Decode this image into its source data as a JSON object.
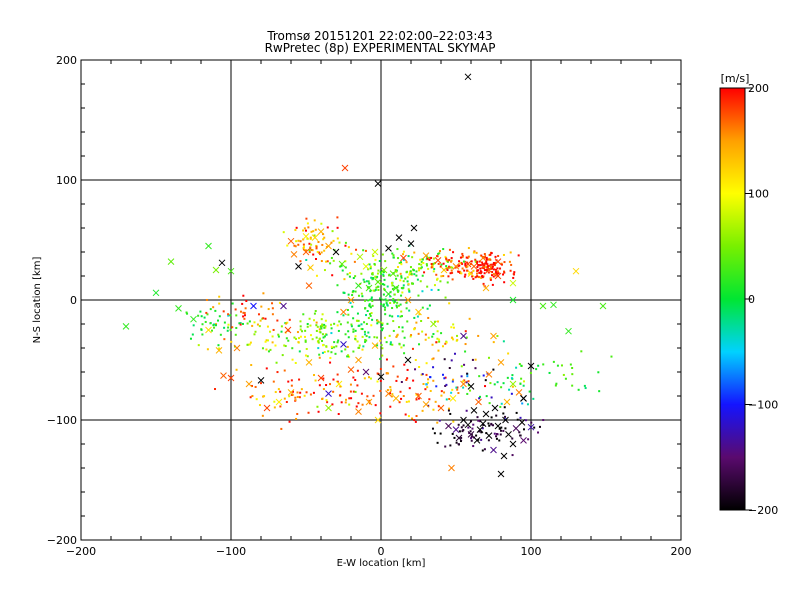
{
  "chart_data": {
    "type": "scatter",
    "title": "Tromsø 20151201 22:02:00–22:03:43",
    "subtitle": "RwPretec (8p) EXPERIMENTAL SKYMAP",
    "xlabel": "E-W location [km]",
    "ylabel": "N-S location [km]",
    "xlim": [
      -200,
      200
    ],
    "ylim": [
      -200,
      200
    ],
    "xticks": [
      -200,
      -100,
      0,
      100,
      200
    ],
    "yticks": [
      -200,
      -100,
      0,
      100,
      200
    ],
    "grid": true,
    "colorbar": {
      "label": "[m/s]",
      "min": -200,
      "max": 200,
      "ticks": [
        200,
        100,
        0,
        -100,
        -200
      ],
      "colormap": [
        "#000000",
        "#5a0a6e",
        "#1414ff",
        "#00d2ff",
        "#00e632",
        "#78f000",
        "#ffff00",
        "#ffa000",
        "#ff0000"
      ]
    },
    "series": [
      {
        "marker": "x",
        "points": [
          [
            58,
            186,
            -200
          ],
          [
            -24,
            110,
            180
          ],
          [
            -2,
            97,
            -200
          ],
          [
            -40,
            57,
            140
          ],
          [
            -44,
            52,
            120
          ],
          [
            -50,
            53,
            110
          ],
          [
            -58,
            38,
            160
          ],
          [
            -60,
            49,
            170
          ],
          [
            -35,
            45,
            150
          ],
          [
            -150,
            6,
            10
          ],
          [
            -170,
            -22,
            20
          ],
          [
            -140,
            32,
            40
          ],
          [
            -115,
            45,
            20
          ],
          [
            -106,
            31,
            -200
          ],
          [
            -110,
            25,
            50
          ],
          [
            -100,
            24,
            30
          ],
          [
            -135,
            -7,
            20
          ],
          [
            -125,
            -16,
            20
          ],
          [
            -115,
            -25,
            120
          ],
          [
            -108,
            -42,
            140
          ],
          [
            -100,
            -65,
            180
          ],
          [
            -80,
            -67,
            -200
          ],
          [
            -76,
            -90,
            180
          ],
          [
            -85,
            -5,
            -100
          ],
          [
            -65,
            -5,
            -140
          ],
          [
            -62,
            -25,
            180
          ],
          [
            -47,
            27,
            130
          ],
          [
            -48,
            12,
            170
          ],
          [
            -25,
            -37,
            -120
          ],
          [
            -20,
            -58,
            170
          ],
          [
            -15,
            -50,
            150
          ],
          [
            -10,
            -60,
            -150
          ],
          [
            -4,
            -38,
            140
          ],
          [
            0,
            -64,
            -200
          ],
          [
            -2,
            -100,
            120
          ],
          [
            -8,
            -85,
            150
          ],
          [
            -15,
            -93,
            160
          ],
          [
            -35,
            -90,
            60
          ],
          [
            -48,
            -52,
            140
          ],
          [
            -28,
            -70,
            110
          ],
          [
            -35,
            -78,
            -120
          ],
          [
            5,
            -78,
            160
          ],
          [
            10,
            -82,
            140
          ],
          [
            18,
            -50,
            -200
          ],
          [
            25,
            -80,
            170
          ],
          [
            30,
            -87,
            150
          ],
          [
            40,
            -90,
            170
          ],
          [
            48,
            -82,
            110
          ],
          [
            55,
            -70,
            160
          ],
          [
            60,
            -72,
            -200
          ],
          [
            65,
            -85,
            170
          ],
          [
            72,
            -62,
            160
          ],
          [
            80,
            -52,
            150
          ],
          [
            88,
            -70,
            60
          ],
          [
            95,
            -82,
            -200
          ],
          [
            100,
            -55,
            -200
          ],
          [
            84,
            -85,
            140
          ],
          [
            92,
            -77,
            160
          ],
          [
            83,
            -100,
            -200
          ],
          [
            76,
            -90,
            -200
          ],
          [
            70,
            -95,
            -200
          ],
          [
            62,
            -92,
            -200
          ],
          [
            55,
            -100,
            -200
          ],
          [
            50,
            -108,
            -140
          ],
          [
            45,
            -105,
            -160
          ],
          [
            58,
            -104,
            -200
          ],
          [
            66,
            -108,
            -200
          ],
          [
            72,
            -113,
            -200
          ],
          [
            78,
            -105,
            -200
          ],
          [
            85,
            -112,
            -200
          ],
          [
            90,
            -107,
            -160
          ],
          [
            95,
            -117,
            -150
          ],
          [
            100,
            -106,
            -130
          ],
          [
            88,
            -120,
            -200
          ],
          [
            75,
            -125,
            -140
          ],
          [
            82,
            -130,
            -200
          ],
          [
            64,
            -117,
            -200
          ],
          [
            68,
            -103,
            -200
          ],
          [
            60,
            -112,
            -170
          ],
          [
            52,
            -115,
            -180
          ],
          [
            94,
            -102,
            -200
          ],
          [
            80,
            -145,
            -200
          ],
          [
            47,
            -140,
            160
          ],
          [
            -14,
            36,
            70
          ],
          [
            -10,
            28,
            90
          ],
          [
            -4,
            40,
            80
          ],
          [
            5,
            43,
            -200
          ],
          [
            12,
            52,
            -200
          ],
          [
            20,
            47,
            -200
          ],
          [
            22,
            60,
            -200
          ],
          [
            15,
            35,
            180
          ],
          [
            30,
            37,
            150
          ],
          [
            38,
            33,
            180
          ],
          [
            42,
            25,
            130
          ],
          [
            50,
            28,
            160
          ],
          [
            58,
            30,
            180
          ],
          [
            62,
            28,
            170
          ],
          [
            68,
            35,
            160
          ],
          [
            72,
            25,
            170
          ],
          [
            78,
            32,
            180
          ],
          [
            78,
            20,
            180
          ],
          [
            88,
            14,
            80
          ],
          [
            88,
            0,
            10
          ],
          [
            70,
            10,
            140
          ],
          [
            60,
            22,
            120
          ],
          [
            2,
            25,
            50
          ],
          [
            8,
            22,
            40
          ],
          [
            -2,
            15,
            40
          ],
          [
            -8,
            10,
            30
          ],
          [
            -15,
            12,
            20
          ],
          [
            5,
            5,
            20
          ],
          [
            10,
            10,
            30
          ],
          [
            -20,
            0,
            150
          ],
          [
            -25,
            -10,
            160
          ],
          [
            18,
            0,
            150
          ],
          [
            25,
            -10,
            130
          ],
          [
            35,
            -20,
            60
          ],
          [
            55,
            -30,
            -140
          ],
          [
            75,
            -30,
            150
          ],
          [
            95,
            -82,
            -200
          ],
          [
            108,
            -5,
            30
          ],
          [
            115,
            -4,
            20
          ],
          [
            125,
            -26,
            20
          ],
          [
            130,
            24,
            120
          ],
          [
            148,
            -5,
            30
          ],
          [
            -40,
            -65,
            180
          ],
          [
            -60,
            -77,
            140
          ],
          [
            -68,
            -85,
            110
          ],
          [
            -88,
            -70,
            150
          ],
          [
            -96,
            -40,
            160
          ],
          [
            -105,
            -63,
            170
          ],
          [
            -30,
            40,
            -200
          ],
          [
            -26,
            30,
            40
          ],
          [
            -55,
            28,
            -200
          ],
          [
            -50,
            40,
            170
          ]
        ]
      },
      {
        "marker": "dot",
        "clusters": [
          {
            "cx": -45,
            "cy": 50,
            "sx": 10,
            "sy": 8,
            "n": 60,
            "v": 150,
            "vs": 40
          },
          {
            "cx": -30,
            "cy": 35,
            "sx": 12,
            "sy": 8,
            "n": 30,
            "v": 100,
            "vs": 60
          },
          {
            "cx": 5,
            "cy": 10,
            "sx": 14,
            "sy": 14,
            "n": 160,
            "v": 20,
            "vs": 25
          },
          {
            "cx": 25,
            "cy": 25,
            "sx": 15,
            "sy": 10,
            "n": 90,
            "v": 60,
            "vs": 40
          },
          {
            "cx": 60,
            "cy": 28,
            "sx": 14,
            "sy": 7,
            "n": 140,
            "v": 180,
            "vs": 30
          },
          {
            "cx": 70,
            "cy": 27,
            "sx": 5,
            "sy": 5,
            "n": 60,
            "v": 200,
            "vs": 10
          },
          {
            "cx": -50,
            "cy": -30,
            "sx": 28,
            "sy": 10,
            "n": 140,
            "v": 60,
            "vs": 40
          },
          {
            "cx": -110,
            "cy": -20,
            "sx": 12,
            "sy": 8,
            "n": 40,
            "v": 10,
            "vs": 20
          },
          {
            "cx": -20,
            "cy": -30,
            "sx": 15,
            "sy": 10,
            "n": 60,
            "v": 30,
            "vs": 30
          },
          {
            "cx": 30,
            "cy": -30,
            "sx": 18,
            "sy": 10,
            "n": 60,
            "v": 100,
            "vs": 50
          },
          {
            "cx": -40,
            "cy": -75,
            "sx": 30,
            "sy": 12,
            "n": 80,
            "v": 180,
            "vs": 30
          },
          {
            "cx": -85,
            "cy": -10,
            "sx": 15,
            "sy": 10,
            "n": 40,
            "v": 170,
            "vs": 30
          },
          {
            "cx": 20,
            "cy": -75,
            "sx": 30,
            "sy": 12,
            "n": 80,
            "v": 160,
            "vs": 40
          },
          {
            "cx": 70,
            "cy": -105,
            "sx": 18,
            "sy": 10,
            "n": 90,
            "v": -180,
            "vs": 30
          },
          {
            "cx": 80,
            "cy": -70,
            "sx": 15,
            "sy": 12,
            "n": 40,
            "v": 0,
            "vs": 50
          },
          {
            "cx": 50,
            "cy": -65,
            "sx": 15,
            "sy": 8,
            "n": 30,
            "v": -150,
            "vs": 50
          },
          {
            "cx": -10,
            "cy": -10,
            "sx": 10,
            "sy": 10,
            "n": 40,
            "v": 10,
            "vs": 20
          },
          {
            "cx": 120,
            "cy": -60,
            "sx": 15,
            "sy": 12,
            "n": 25,
            "v": 20,
            "vs": 20
          },
          {
            "cx": -60,
            "cy": -80,
            "sx": 15,
            "sy": 10,
            "n": 20,
            "v": 130,
            "vs": 40
          }
        ]
      }
    ]
  }
}
